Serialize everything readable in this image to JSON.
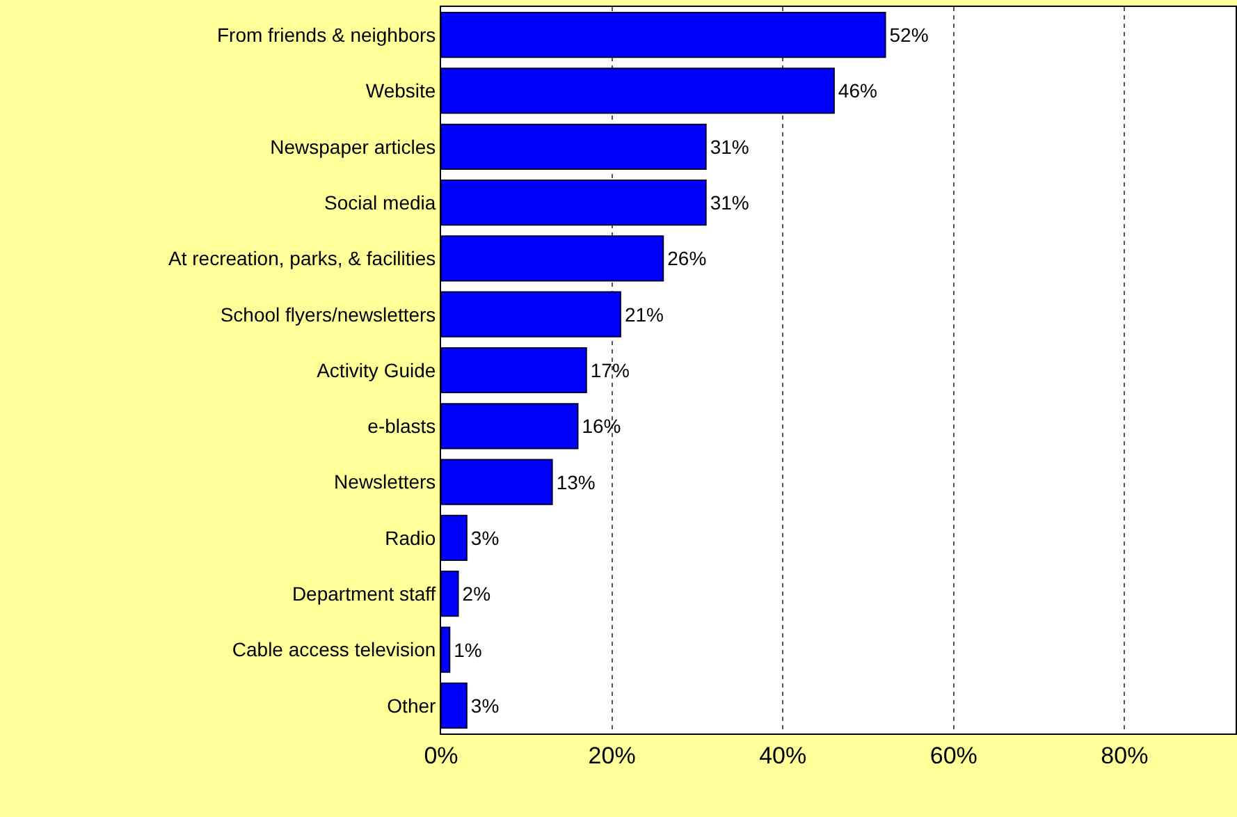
{
  "chart_data": {
    "type": "bar",
    "orientation": "horizontal",
    "categories": [
      "From friends & neighbors",
      "Website",
      "Newspaper articles",
      "Social media",
      "At recreation, parks, & facilities",
      "School flyers/newsletters",
      "Activity Guide",
      "e-blasts",
      "Newsletters",
      "Radio",
      "Department staff",
      "Cable access television",
      "Other"
    ],
    "values": [
      52,
      46,
      31,
      31,
      26,
      21,
      17,
      16,
      13,
      3,
      2,
      1,
      3
    ],
    "value_labels": [
      "52%",
      "46%",
      "31%",
      "31%",
      "26%",
      "21%",
      "17%",
      "16%",
      "13%",
      "3%",
      "2%",
      "1%",
      "3%"
    ],
    "color": "#0000ff",
    "xlim": [
      0,
      93
    ],
    "xticks": [
      {
        "value": 0,
        "label": "0%"
      },
      {
        "value": 20,
        "label": "20%"
      },
      {
        "value": 40,
        "label": "40%"
      },
      {
        "value": 60,
        "label": "60%"
      },
      {
        "value": 80,
        "label": "80%"
      }
    ],
    "grid": "x"
  }
}
